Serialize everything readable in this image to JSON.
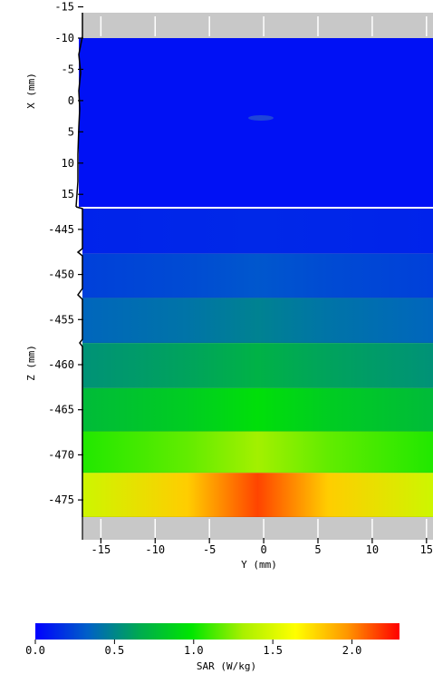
{
  "chart_data": {
    "type": "heatmap",
    "top_panel": {
      "xlabel": "X (mm)",
      "x_tick_labels": [
        "-15",
        "-10",
        "-5",
        "0",
        "5",
        "10",
        "15"
      ],
      "x_ticks": [
        -15,
        -10,
        -5,
        0,
        5,
        10,
        15
      ],
      "x_range": [
        -10,
        17
      ],
      "sar_level": 0.06
    },
    "bottom_panel": {
      "zlabel": "Z (mm)",
      "z_tick_labels": [
        "-445",
        "-450",
        "-455",
        "-460",
        "-465",
        "-470",
        "-475"
      ],
      "z_ticks": [
        -445,
        -450,
        -455,
        -460,
        -465,
        -470,
        -475
      ],
      "z_range": [
        -476.9,
        -442.7
      ],
      "bands": [
        {
          "z_top": -442.7,
          "z_bottom": -447.7,
          "edge": 0.12,
          "center": 0.14
        },
        {
          "z_top": -447.7,
          "z_bottom": -452.6,
          "edge": 0.22,
          "center": 0.3
        },
        {
          "z_top": -452.6,
          "z_bottom": -457.6,
          "edge": 0.36,
          "center": 0.48
        },
        {
          "z_top": -457.6,
          "z_bottom": -462.6,
          "edge": 0.55,
          "center": 0.7
        },
        {
          "z_top": -462.6,
          "z_bottom": -467.4,
          "edge": 0.75,
          "center": 0.95
        },
        {
          "z_top": -467.4,
          "z_bottom": -472.0,
          "edge": 1.05,
          "center": 1.3
        },
        {
          "z_top": -472.0,
          "z_bottom": -476.9,
          "edge": 1.45,
          "center": 2.15
        }
      ]
    },
    "y_axis": {
      "label": "Y (mm)",
      "tick_labels": [
        "-15",
        "-10",
        "-5",
        "0",
        "5",
        "10",
        "15"
      ],
      "ticks": [
        -15,
        -10,
        -5,
        0,
        5,
        10,
        15
      ],
      "range": [
        -16.7,
        15.6
      ]
    },
    "colorbar": {
      "label": "SAR (W/kg)",
      "tick_labels": [
        "0.0",
        "0.5",
        "1.0",
        "1.5",
        "2.0"
      ],
      "ticks": [
        0.0,
        0.5,
        1.0,
        1.5,
        2.0
      ],
      "range": [
        0.0,
        2.3
      ],
      "colors": [
        "#0000ff",
        "#005fc8",
        "#00aa50",
        "#00e600",
        "#aaf000",
        "#ffff00",
        "#ff9600",
        "#ff0000"
      ]
    }
  }
}
